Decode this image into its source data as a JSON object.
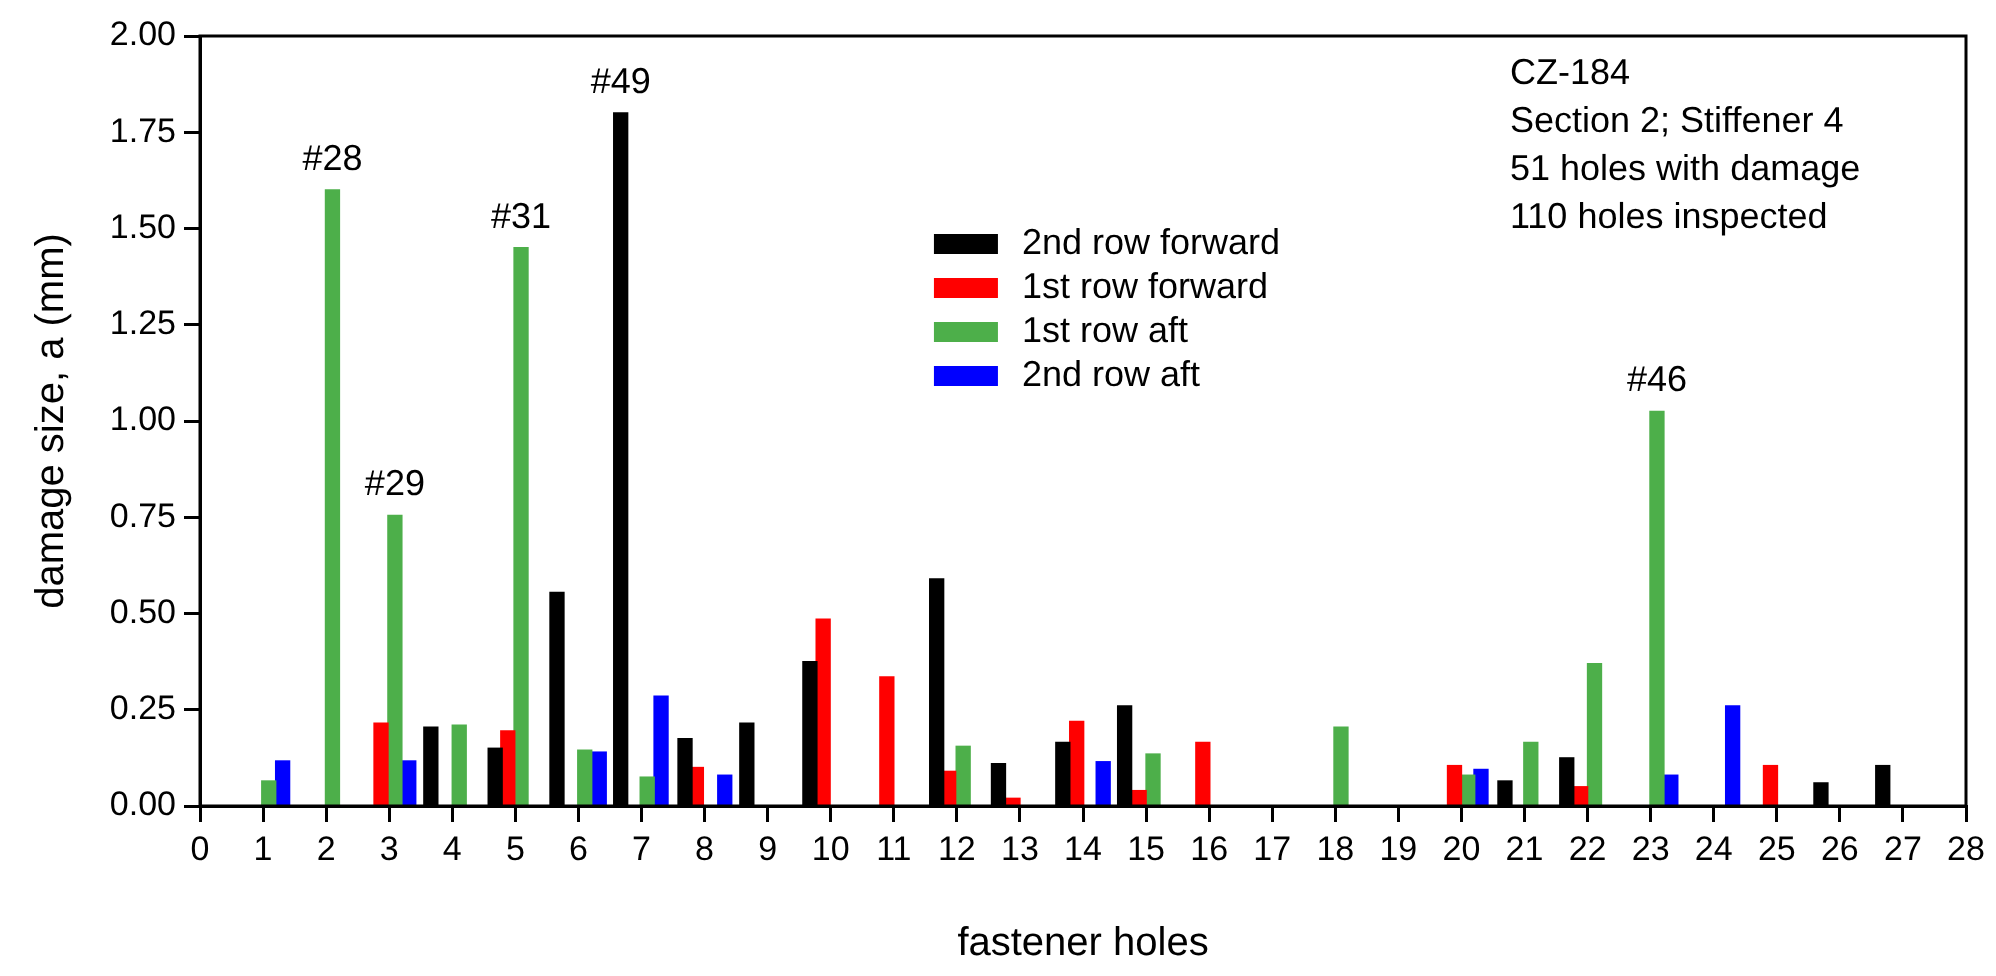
{
  "chart_data": {
    "type": "bar",
    "xlabel": "fastener holes",
    "ylabel": "damage size, a (mm)",
    "xlim": [
      0,
      28
    ],
    "xticks": [
      0,
      1,
      2,
      3,
      4,
      5,
      6,
      7,
      8,
      9,
      10,
      11,
      12,
      13,
      14,
      15,
      16,
      17,
      18,
      19,
      20,
      21,
      22,
      23,
      24,
      25,
      26,
      27,
      28
    ],
    "ylim": [
      0,
      2
    ],
    "yticks": [
      {
        "value": 0,
        "label": "0.00"
      },
      {
        "value": 0.25,
        "label": "0.25"
      },
      {
        "value": 0.5,
        "label": "0.50"
      },
      {
        "value": 0.75,
        "label": "0.75"
      },
      {
        "value": 1,
        "label": "1.00"
      },
      {
        "value": 1.25,
        "label": "1.25"
      },
      {
        "value": 1.5,
        "label": "1.50"
      },
      {
        "value": 1.75,
        "label": "1.75"
      },
      {
        "value": 2,
        "label": "2.00"
      }
    ],
    "grid": false,
    "legend": "top",
    "series": [
      {
        "name": "2nd row forward",
        "color": "#000000",
        "x": [
          3.66,
          4.68,
          5.66,
          6.67,
          7.69,
          8.67,
          9.67,
          11.68,
          12.66,
          13.68,
          14.66,
          20.69,
          21.67,
          25.7,
          26.68
        ],
        "values": [
          0.205,
          0.15,
          0.555,
          1.8,
          0.175,
          0.215,
          0.375,
          0.59,
          0.11,
          0.165,
          0.26,
          0.065,
          0.125,
          0.06,
          0.105
        ]
      },
      {
        "name": "1st row forward",
        "color": "#ff0000",
        "x": [
          2.87,
          4.88,
          7.87,
          9.88,
          10.89,
          11.87,
          12.89,
          13.9,
          14.89,
          15.9,
          19.89,
          21.89,
          24.9
        ],
        "values": [
          0.215,
          0.195,
          0.1,
          0.485,
          0.335,
          0.09,
          0.02,
          0.22,
          0.04,
          0.165,
          0.105,
          0.05,
          0.105
        ]
      },
      {
        "name": "1st row aft",
        "color": "#4daf4a",
        "x": [
          1.09,
          2.1,
          3.09,
          4.11,
          5.09,
          6.1,
          7.09,
          12.1,
          15.11,
          18.09,
          20.1,
          21.1,
          22.11,
          23.1
        ],
        "values": [
          0.065,
          1.6,
          0.755,
          0.21,
          1.45,
          0.145,
          0.075,
          0.155,
          0.135,
          0.205,
          0.08,
          0.165,
          0.37,
          1.025
        ]
      },
      {
        "name": "2nd row aft",
        "color": "#0000ff",
        "x": [
          1.31,
          3.31,
          6.33,
          7.31,
          8.32,
          14.32,
          20.31,
          23.32,
          24.3
        ],
        "values": [
          0.117,
          0.117,
          0.14,
          0.285,
          0.08,
          0.115,
          0.095,
          0.08,
          0.26
        ]
      }
    ],
    "annotations": [
      {
        "text": "#28",
        "x": 2.1,
        "y": 1.6
      },
      {
        "text": "#29",
        "x": 3.09,
        "y": 0.755
      },
      {
        "text": "#31",
        "x": 5.09,
        "y": 1.45
      },
      {
        "text": "#49",
        "x": 6.67,
        "y": 1.8
      },
      {
        "text": "#46",
        "x": 23.1,
        "y": 1.025
      },
      "CZ-184",
      "Section 2; Stiffener 4",
      "51 holes with damage",
      "110 holes inspected"
    ]
  }
}
